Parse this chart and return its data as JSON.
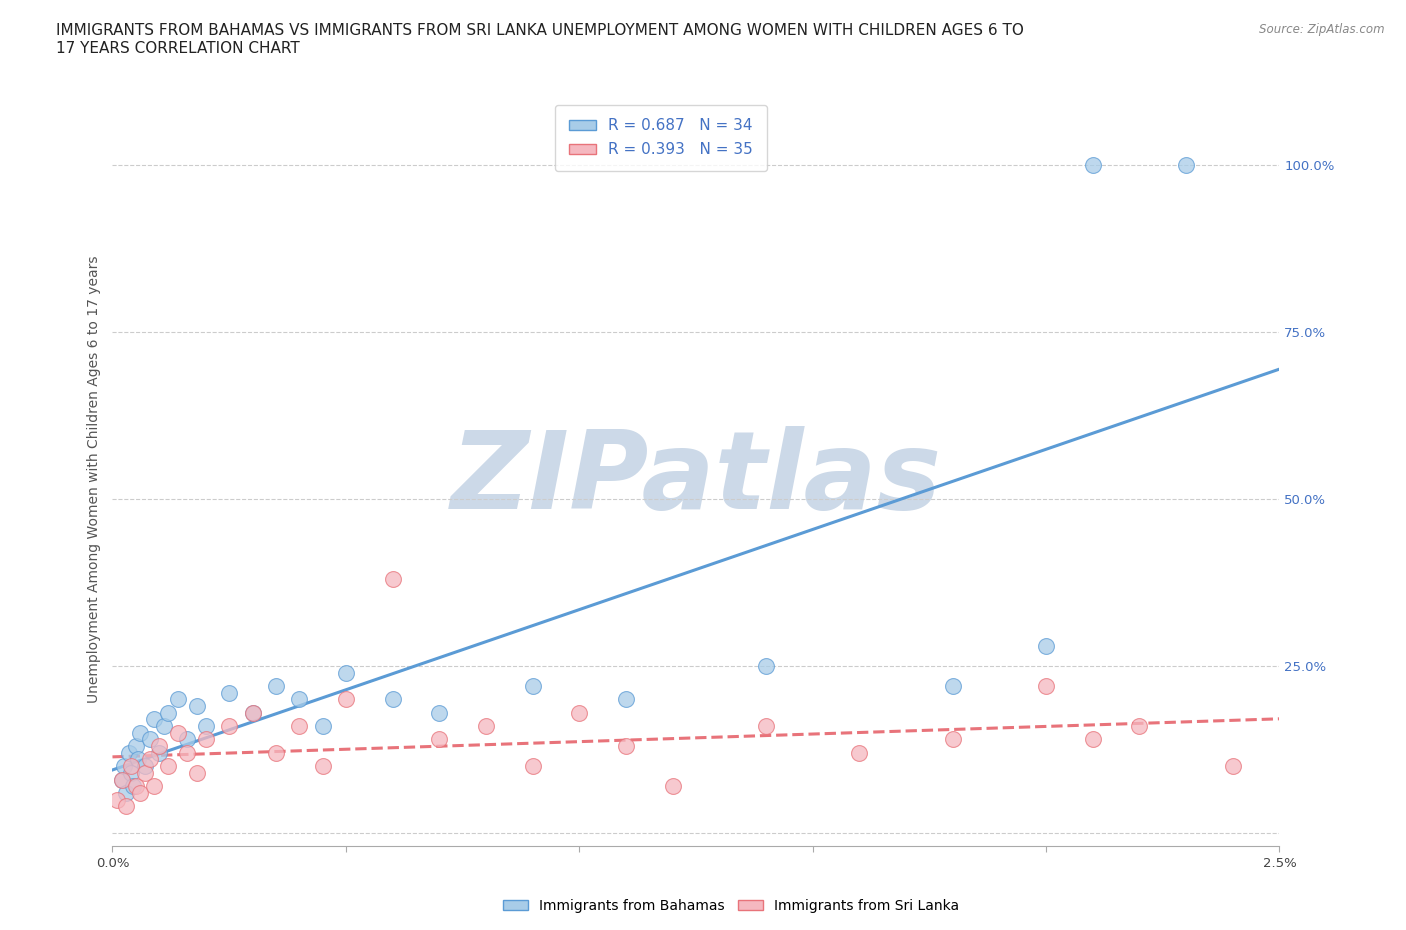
{
  "title": "IMMIGRANTS FROM BAHAMAS VS IMMIGRANTS FROM SRI LANKA UNEMPLOYMENT AMONG WOMEN WITH CHILDREN AGES 6 TO\n17 YEARS CORRELATION CHART",
  "source": "Source: ZipAtlas.com",
  "ylabel": "Unemployment Among Women with Children Ages 6 to 17 years",
  "legend_label1": "Immigrants from Bahamas",
  "legend_label2": "Immigrants from Sri Lanka",
  "r1": 0.687,
  "n1": 34,
  "r2": 0.393,
  "n2": 35,
  "color_bahamas": "#a8cce8",
  "color_srilanka": "#f5b8c0",
  "color_bahamas_line": "#5b9bd5",
  "color_srilanka_line": "#e8737a",
  "xlim": [
    0.0,
    0.025
  ],
  "ylim": [
    -0.02,
    1.08
  ],
  "xticks": [
    0.0,
    0.005,
    0.01,
    0.015,
    0.02,
    0.025
  ],
  "xtick_labels": [
    "0.0%",
    "",
    "",
    "",
    "",
    "2.5%"
  ],
  "ytick_right": [
    0.0,
    0.25,
    0.5,
    0.75,
    1.0
  ],
  "ytick_right_labels": [
    "",
    "25.0%",
    "50.0%",
    "75.0%",
    "100.0%"
  ],
  "bahamas_x": [
    0.0002,
    0.00025,
    0.0003,
    0.00035,
    0.0004,
    0.00045,
    0.0005,
    0.00055,
    0.0006,
    0.0007,
    0.0008,
    0.0009,
    0.001,
    0.0011,
    0.0012,
    0.0014,
    0.0016,
    0.0018,
    0.002,
    0.0025,
    0.003,
    0.0035,
    0.004,
    0.0045,
    0.005,
    0.006,
    0.007,
    0.009,
    0.011,
    0.014,
    0.018,
    0.02,
    0.021,
    0.023
  ],
  "bahamas_y": [
    0.08,
    0.1,
    0.06,
    0.12,
    0.09,
    0.07,
    0.13,
    0.11,
    0.15,
    0.1,
    0.14,
    0.17,
    0.12,
    0.16,
    0.18,
    0.2,
    0.14,
    0.19,
    0.16,
    0.21,
    0.18,
    0.22,
    0.2,
    0.16,
    0.24,
    0.2,
    0.18,
    0.22,
    0.2,
    0.25,
    0.22,
    0.28,
    1.0,
    1.0
  ],
  "srilanka_x": [
    0.0001,
    0.0002,
    0.0003,
    0.0004,
    0.0005,
    0.0006,
    0.0007,
    0.0008,
    0.0009,
    0.001,
    0.0012,
    0.0014,
    0.0016,
    0.0018,
    0.002,
    0.0025,
    0.003,
    0.0035,
    0.004,
    0.0045,
    0.005,
    0.006,
    0.007,
    0.008,
    0.009,
    0.01,
    0.011,
    0.012,
    0.014,
    0.016,
    0.018,
    0.02,
    0.021,
    0.022,
    0.024
  ],
  "srilanka_y": [
    0.05,
    0.08,
    0.04,
    0.1,
    0.07,
    0.06,
    0.09,
    0.11,
    0.07,
    0.13,
    0.1,
    0.15,
    0.12,
    0.09,
    0.14,
    0.16,
    0.18,
    0.12,
    0.16,
    0.1,
    0.2,
    0.38,
    0.14,
    0.16,
    0.1,
    0.18,
    0.13,
    0.07,
    0.16,
    0.12,
    0.14,
    0.22,
    0.14,
    0.16,
    0.1
  ],
  "watermark": "ZIPatlas",
  "watermark_color": "#ccd9e8",
  "grid_color": "#cccccc",
  "background_color": "#ffffff",
  "title_fontsize": 11,
  "axis_label_fontsize": 10,
  "tick_fontsize": 9.5,
  "legend_fontsize": 11
}
